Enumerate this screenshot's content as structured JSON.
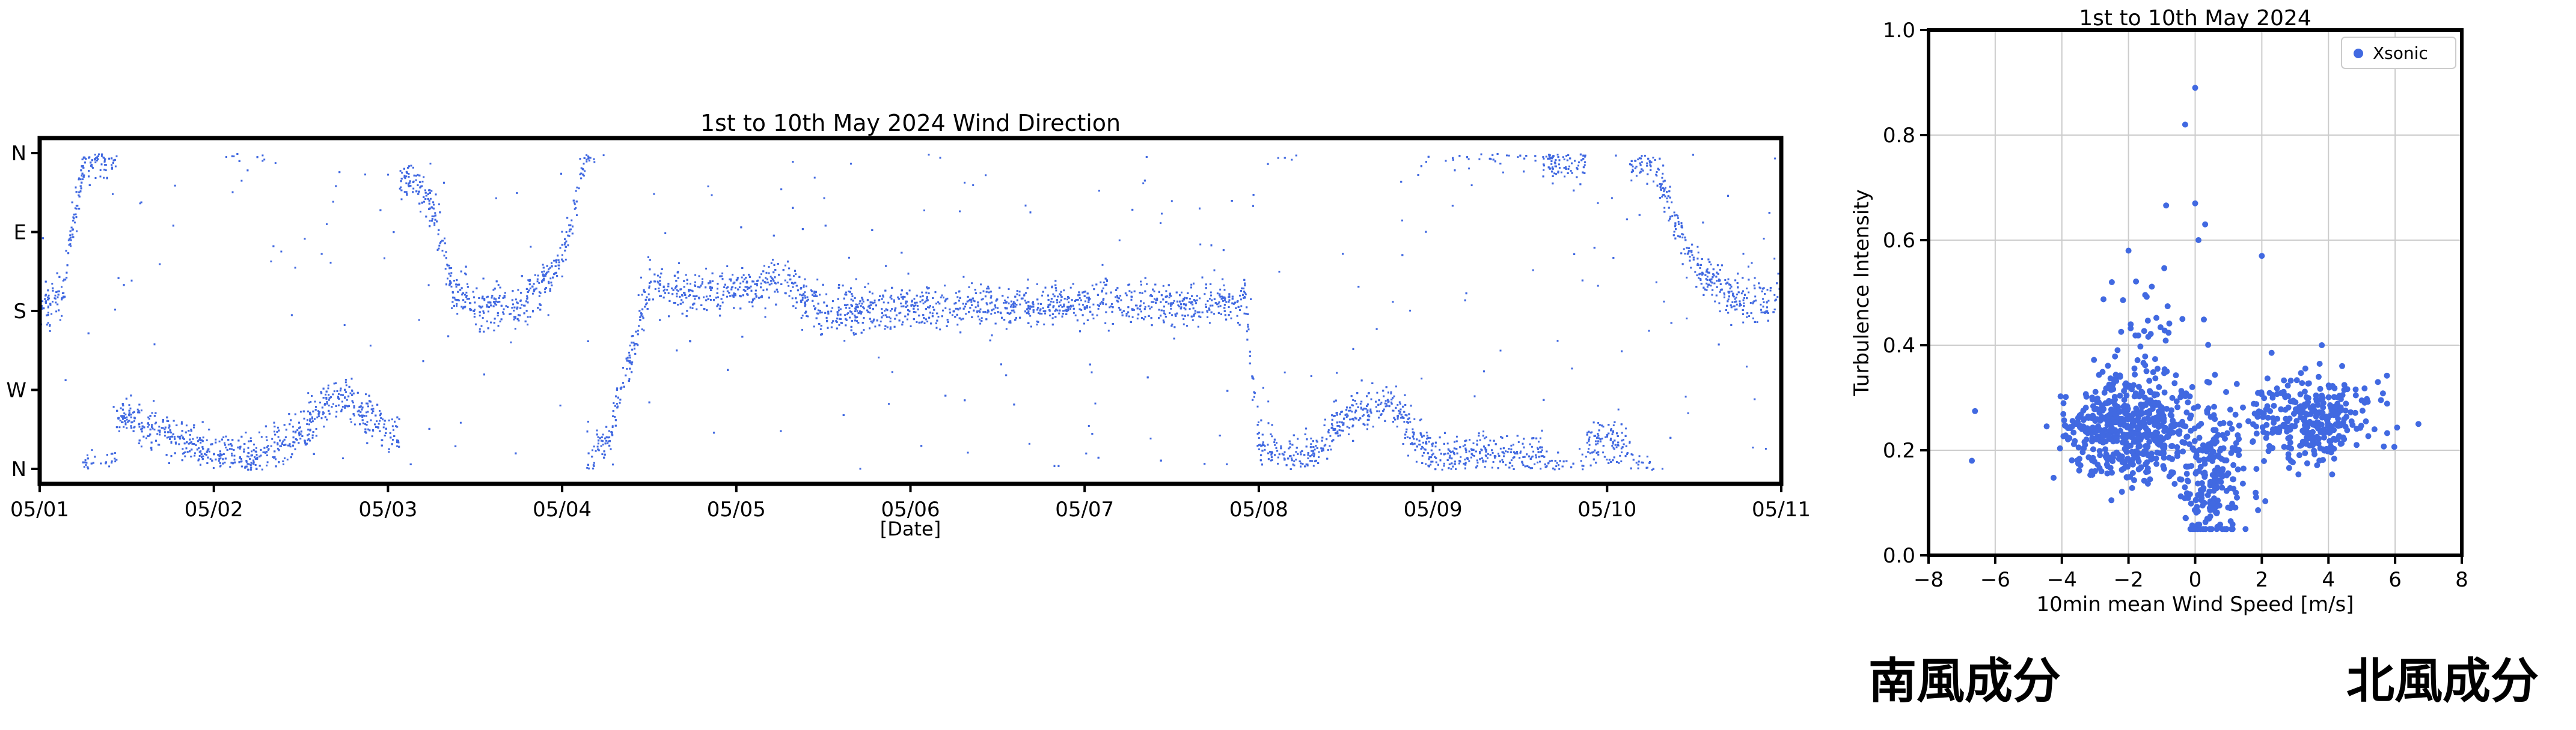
{
  "chart_data": [
    {
      "type": "scatter",
      "title": "1st to 10th May 2024 Wind Direction",
      "xlabel": "[Date]",
      "ylabel": "",
      "x_ticks": [
        "05/01",
        "05/02",
        "05/03",
        "05/04",
        "05/05",
        "05/06",
        "05/07",
        "05/08",
        "05/09",
        "05/10",
        "05/11"
      ],
      "y_ticks": [
        "N",
        "W",
        "S",
        "E",
        "N"
      ],
      "xlim": [
        "2024-05-01",
        "2024-05-11"
      ],
      "ylim": [
        0,
        360
      ],
      "color": "#4169e1",
      "legend": "none",
      "grid": false,
      "series": [
        {
          "trend": [
            [
              "2024-05-01T00:00",
              175
            ],
            [
              "2024-05-01T03:00",
              200
            ],
            [
              "2024-05-01T06:00",
              355
            ],
            [
              "2024-05-01T09:00",
              355
            ],
            [
              "2024-05-01T12:00",
              60
            ],
            [
              "2024-05-01T18:00",
              40
            ],
            [
              "2024-05-02T00:00",
              20
            ],
            [
              "2024-05-02T06:00",
              15
            ],
            [
              "2024-05-02T12:00",
              40
            ],
            [
              "2024-05-02T15:00",
              75
            ],
            [
              "2024-05-02T18:00",
              85
            ],
            [
              "2024-05-03T00:00",
              40
            ],
            [
              "2024-05-03T03:00",
              330
            ],
            [
              "2024-05-03T06:00",
              300
            ],
            [
              "2024-05-03T09:00",
              200
            ],
            [
              "2024-05-03T12:00",
              185
            ],
            [
              "2024-05-03T18:00",
              185
            ],
            [
              "2024-05-04T00:00",
              240
            ],
            [
              "2024-05-04T03:00",
              355
            ],
            [
              "2024-05-04T06:00",
              30
            ],
            [
              "2024-05-04T12:00",
              210
            ],
            [
              "2024-05-04T18:00",
              200
            ],
            [
              "2024-05-05T00:00",
              205
            ],
            [
              "2024-05-05T06:00",
              220
            ],
            [
              "2024-05-05T12:00",
              180
            ],
            [
              "2024-05-06T00:00",
              185
            ],
            [
              "2024-05-06T12:00",
              185
            ],
            [
              "2024-05-07T00:00",
              190
            ],
            [
              "2024-05-07T12:00",
              190
            ],
            [
              "2024-05-07T22:00",
              195
            ],
            [
              "2024-05-08T00:00",
              30
            ],
            [
              "2024-05-08T06:00",
              10
            ],
            [
              "2024-05-08T12:00",
              60
            ],
            [
              "2024-05-08T18:00",
              75
            ],
            [
              "2024-05-09T00:00",
              15
            ],
            [
              "2024-05-09T12:00",
              15
            ],
            [
              "2024-05-09T18:00",
              355
            ],
            [
              "2024-05-10T00:00",
              30
            ],
            [
              "2024-05-10T06:00",
              350
            ],
            [
              "2024-05-10T12:00",
              230
            ],
            [
              "2024-05-10T18:00",
              190
            ],
            [
              "2024-05-11T00:00",
              190
            ]
          ]
        }
      ]
    },
    {
      "type": "scatter",
      "title": "1st to 10th May 2024",
      "xlabel": "10min mean Wind Speed [m/s]",
      "ylabel": "Turbulence Intensity",
      "xlim": [
        -8,
        8
      ],
      "ylim": [
        0.0,
        1.0
      ],
      "x_ticks": [
        "−8",
        "−6",
        "−4",
        "−2",
        "0",
        "2",
        "4",
        "6",
        "8"
      ],
      "y_ticks": [
        "0.0",
        "0.2",
        "0.4",
        "0.6",
        "0.8",
        "1.0"
      ],
      "grid": true,
      "legend": "top-right",
      "color": "#4169e1",
      "series": [
        {
          "name": "Xsonic",
          "clusters": [
            {
              "center": [
                -2.0,
                0.24
              ],
              "spread": [
                1.6,
                0.045
              ],
              "count": 520
            },
            {
              "center": [
                3.5,
                0.26
              ],
              "spread": [
                1.5,
                0.04
              ],
              "count": 300
            },
            {
              "center": [
                0.5,
                0.15
              ],
              "spread": [
                0.9,
                0.07
              ],
              "count": 220
            },
            {
              "center": [
                -1.5,
                0.36
              ],
              "spread": [
                1.2,
                0.08
              ],
              "count": 60
            }
          ],
          "points": [
            [
              0.0,
              0.89
            ],
            [
              -0.3,
              0.82
            ],
            [
              0.0,
              0.67
            ],
            [
              0.3,
              0.63
            ],
            [
              0.1,
              0.6
            ],
            [
              2.0,
              0.57
            ],
            [
              -2.0,
              0.58
            ],
            [
              -2.5,
              0.52
            ],
            [
              -6.7,
              0.18
            ],
            [
              6.7,
              0.25
            ],
            [
              3.8,
              0.4
            ]
          ]
        }
      ]
    }
  ],
  "annotations": {
    "south_component": "南風成分",
    "north_component": "北風成分"
  }
}
